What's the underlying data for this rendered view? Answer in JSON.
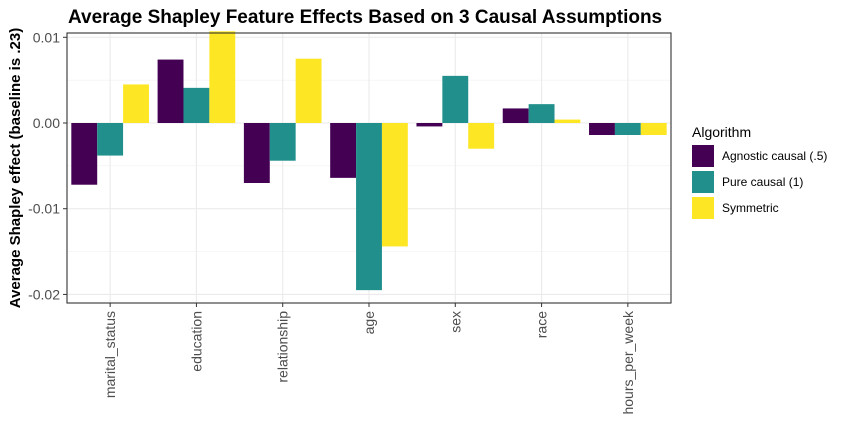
{
  "chart_data": {
    "type": "bar",
    "title": "Average Shapley Feature Effects Based on 3 Causal Assumptions",
    "xlabel": "",
    "ylabel": "Average Shapley effect (baseline is .23)",
    "categories": [
      "marital_status",
      "education",
      "relationship",
      "age",
      "sex",
      "race",
      "hours_per_week"
    ],
    "series": [
      {
        "name": "Agnostic causal (.5)",
        "color": "#440154",
        "values": [
          -0.0072,
          0.0074,
          -0.007,
          -0.0064,
          -0.0004,
          0.0017,
          -0.0014
        ]
      },
      {
        "name": "Pure causal (1)",
        "color": "#21908C",
        "values": [
          -0.0038,
          0.0041,
          -0.0044,
          -0.0195,
          0.0055,
          0.0022,
          -0.0014
        ]
      },
      {
        "name": "Symmetric",
        "color": "#FDE725",
        "values": [
          0.0045,
          0.0107,
          0.0075,
          -0.0144,
          -0.003,
          0.0004,
          -0.0014
        ]
      }
    ],
    "ylim": [
      -0.021,
      0.0105
    ],
    "yticks": [
      -0.02,
      -0.01,
      0.0,
      0.01
    ],
    "ytick_labels": [
      "-0.02",
      "-0.01",
      "0.00",
      "0.01"
    ],
    "legend": {
      "title": "Algorithm",
      "position": "right"
    },
    "grid": true
  }
}
